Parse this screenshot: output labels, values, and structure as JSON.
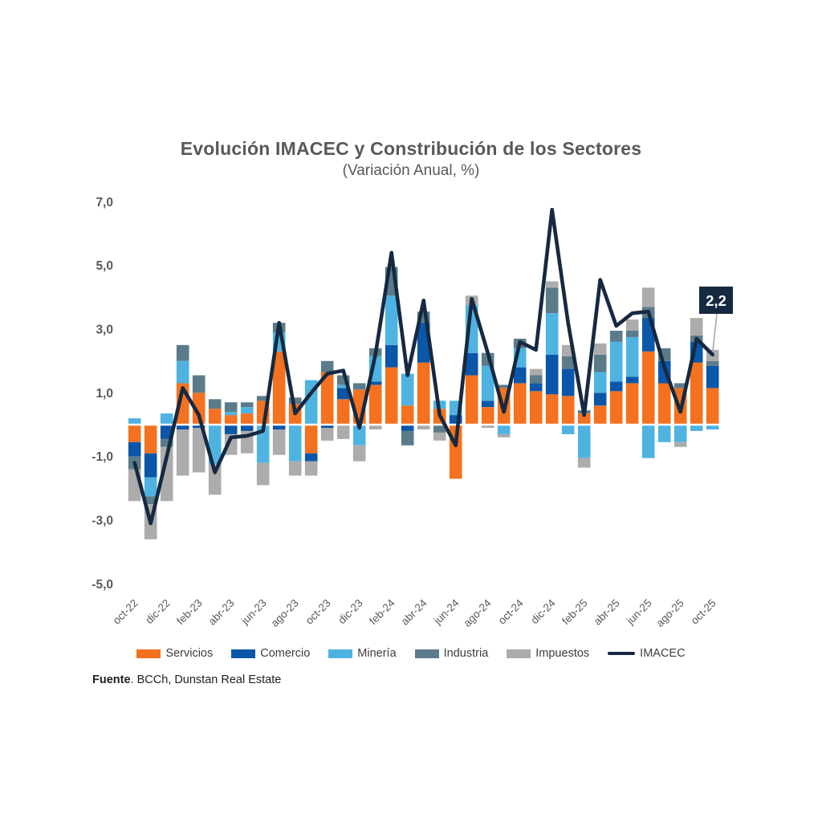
{
  "title": "Evolución IMACEC y Constribución de los Sectores",
  "subtitle": "(Variación Anual, %)",
  "source": {
    "bold": "Fuente",
    "rest": ". BCCh, Dunstan Real Estate"
  },
  "colors": {
    "servicios": "#F4711F",
    "comercio": "#0A56A8",
    "mineria": "#4FB3E2",
    "industria": "#5C7B8A",
    "impuestos": "#ACACAC",
    "imacec": "#152940",
    "axis_text": "#595959",
    "annotation_bg": "#152940",
    "annotation_text": "#ffffff"
  },
  "chart_data": {
    "type": "bar",
    "subtype": "stacked-bar-with-line",
    "title": "Evolución IMACEC y Constribución de los Sectores",
    "subtitle": "(Variación Anual, %)",
    "xlabel": "",
    "ylabel": "",
    "ylim": [
      -5,
      7
    ],
    "grid": false,
    "legend_position": "bottom",
    "categories": [
      "oct-22",
      "nov-22",
      "dic-22",
      "ene-23",
      "feb-23",
      "mar-23",
      "abr-23",
      "may-23",
      "jun-23",
      "jul-23",
      "ago-23",
      "sep-23",
      "oct-23",
      "nov-23",
      "dic-23",
      "ene-24",
      "feb-24",
      "mar-24",
      "abr-24",
      "may-24",
      "jun-24",
      "jul-24",
      "ago-24",
      "sep-24",
      "oct-24",
      "nov-24",
      "dic-24",
      "ene-25",
      "feb-25",
      "mar-25",
      "abr-25",
      "may-25",
      "jun-25",
      "jul-25",
      "ago-25",
      "sep-25",
      "oct-25"
    ],
    "x_tick_labels": [
      "oct-22",
      "dic-22",
      "feb-23",
      "abr-23",
      "jun-23",
      "ago-23",
      "oct-23",
      "dic-23",
      "feb-24",
      "abr-24",
      "jun-24",
      "ago-24",
      "oct-24",
      "dic-24",
      "feb-25",
      "abr-25",
      "jun-25",
      "ago-25",
      "oct-25"
    ],
    "yticks": [
      {
        "label": "7,0",
        "value": 7
      },
      {
        "label": "5,0",
        "value": 5
      },
      {
        "label": "3,0",
        "value": 3
      },
      {
        "label": "1,0",
        "value": 1
      },
      {
        "label": "-1,0",
        "value": -1
      },
      {
        "label": "-3,0",
        "value": -3
      },
      {
        "label": "-5,0",
        "value": -5
      }
    ],
    "series": [
      {
        "name": "Servicios",
        "color": "#F4711F",
        "values": [
          -0.55,
          -0.9,
          0,
          1.3,
          1.0,
          0.5,
          0.3,
          0.35,
          0.75,
          2.3,
          0.65,
          -0.9,
          1.65,
          0.8,
          1.1,
          1.25,
          1.8,
          0.6,
          1.95,
          0.5,
          -1.7,
          1.55,
          0.55,
          1.15,
          1.3,
          1.05,
          0.95,
          0.9,
          0.35,
          0.6,
          1.05,
          1.3,
          2.3,
          1.3,
          1.15,
          1.95,
          1.15
        ]
      },
      {
        "name": "Comercio",
        "color": "#0A56A8",
        "values": [
          -0.45,
          -0.75,
          -0.45,
          -0.15,
          -0.1,
          0,
          -0.3,
          -0.2,
          0,
          -0.15,
          0,
          -0.25,
          -0.1,
          0.35,
          0,
          0.1,
          0.7,
          -0.2,
          1.25,
          0,
          0.3,
          0.7,
          0.2,
          0,
          0.5,
          0.25,
          1.25,
          0.85,
          0,
          0.4,
          0.3,
          0.2,
          1.05,
          0.7,
          0,
          0.65,
          0.7
        ]
      },
      {
        "name": "Minería",
        "color": "#4FB3E2",
        "values": [
          0.2,
          -0.6,
          0.35,
          0.7,
          0,
          -1.25,
          0.1,
          0.2,
          -1.2,
          0.6,
          -1.15,
          1.4,
          0,
          0.1,
          -0.65,
          0.8,
          1.55,
          1.0,
          0,
          0.25,
          0.45,
          1.5,
          1.1,
          -0.3,
          0.6,
          0,
          1.3,
          -0.3,
          -1.05,
          0.65,
          1.25,
          1.25,
          -1.05,
          -0.55,
          -0.55,
          -0.2,
          -0.15
        ]
      },
      {
        "name": "Industria",
        "color": "#5C7B8A",
        "values": [
          -0.4,
          -0.25,
          -0.25,
          0.5,
          0.55,
          0.3,
          0.3,
          0.15,
          0.15,
          0.3,
          0.2,
          0,
          0.35,
          0.3,
          0.2,
          0.25,
          0.9,
          -0.45,
          0.35,
          -0.25,
          0,
          0,
          0.4,
          0.1,
          0.3,
          0.25,
          0.8,
          0.4,
          0.1,
          0.55,
          0.35,
          0.2,
          0.35,
          0.4,
          0.15,
          0.2,
          0.15
        ]
      },
      {
        "name": "Impuestos",
        "color": "#ACACAC",
        "values": [
          -1.0,
          -1.1,
          -1.7,
          -1.45,
          -1.4,
          -0.95,
          -0.65,
          -0.7,
          -0.7,
          -0.8,
          -0.45,
          -0.45,
          -0.4,
          -0.45,
          -0.5,
          -0.15,
          0,
          0,
          -0.15,
          -0.25,
          0,
          0.3,
          -0.1,
          -0.1,
          0,
          0.2,
          0.2,
          0.35,
          -0.3,
          0.35,
          0,
          0.35,
          0.6,
          0,
          -0.15,
          0.55,
          0.35
        ]
      }
    ],
    "line_series": {
      "name": "IMACEC",
      "color": "#152940",
      "values": [
        -1.2,
        -3.1,
        -1.0,
        1.15,
        0.3,
        -1.5,
        -0.4,
        -0.35,
        -0.2,
        3.2,
        0.35,
        1.0,
        1.6,
        1.7,
        -0.1,
        2.2,
        5.4,
        1.55,
        3.9,
        0.3,
        -0.65,
        3.95,
        2.25,
        0.4,
        2.6,
        2.35,
        6.75,
        3.2,
        0.3,
        4.55,
        3.1,
        3.5,
        3.55,
        1.8,
        0.4,
        2.7,
        2.2
      ]
    },
    "annotation": {
      "label": "2,2",
      "category": "oct-25",
      "index": 36
    }
  }
}
